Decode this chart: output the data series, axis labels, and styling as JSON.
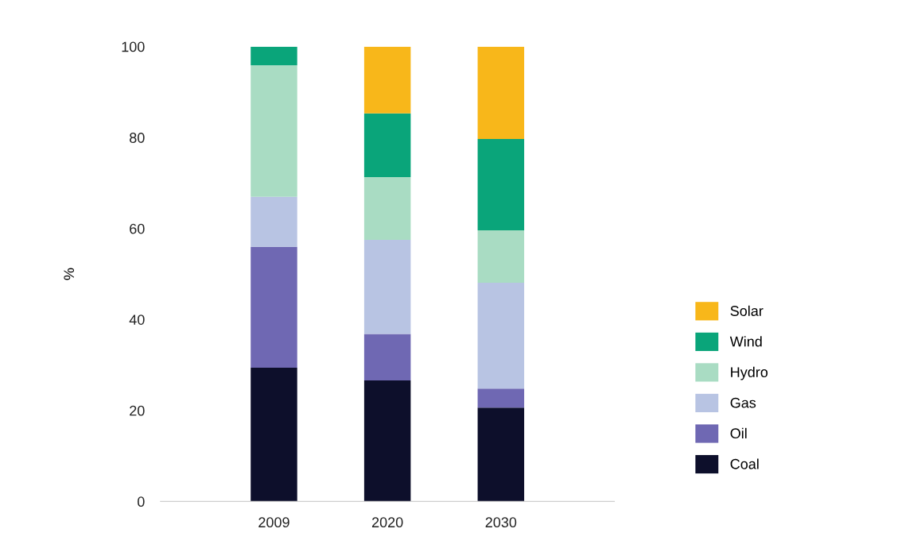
{
  "chart_data": {
    "type": "bar",
    "stacked": true,
    "ylabel": "%",
    "categories": [
      "2009",
      "2020",
      "2030"
    ],
    "series": [
      {
        "name": "Coal",
        "color": "#0d0f2b",
        "values": [
          29.4,
          26.6,
          20.6
        ]
      },
      {
        "name": "Oil",
        "color": "#6f68b3",
        "values": [
          26.6,
          10.2,
          4.2
        ]
      },
      {
        "name": "Gas",
        "color": "#b8c4e3",
        "values": [
          11.0,
          20.7,
          23.3
        ]
      },
      {
        "name": "Hydro",
        "color": "#a9dcc3",
        "values": [
          28.9,
          13.8,
          11.5
        ]
      },
      {
        "name": "Wind",
        "color": "#0aa57a",
        "values": [
          4.1,
          14.0,
          20.1
        ]
      },
      {
        "name": "Solar",
        "color": "#f8b71a",
        "values": [
          0,
          14.7,
          20.3
        ]
      }
    ],
    "ylim": [
      0,
      100
    ],
    "yticks": [
      0,
      20,
      40,
      60,
      80,
      100
    ],
    "grid": false,
    "legend": "right"
  }
}
